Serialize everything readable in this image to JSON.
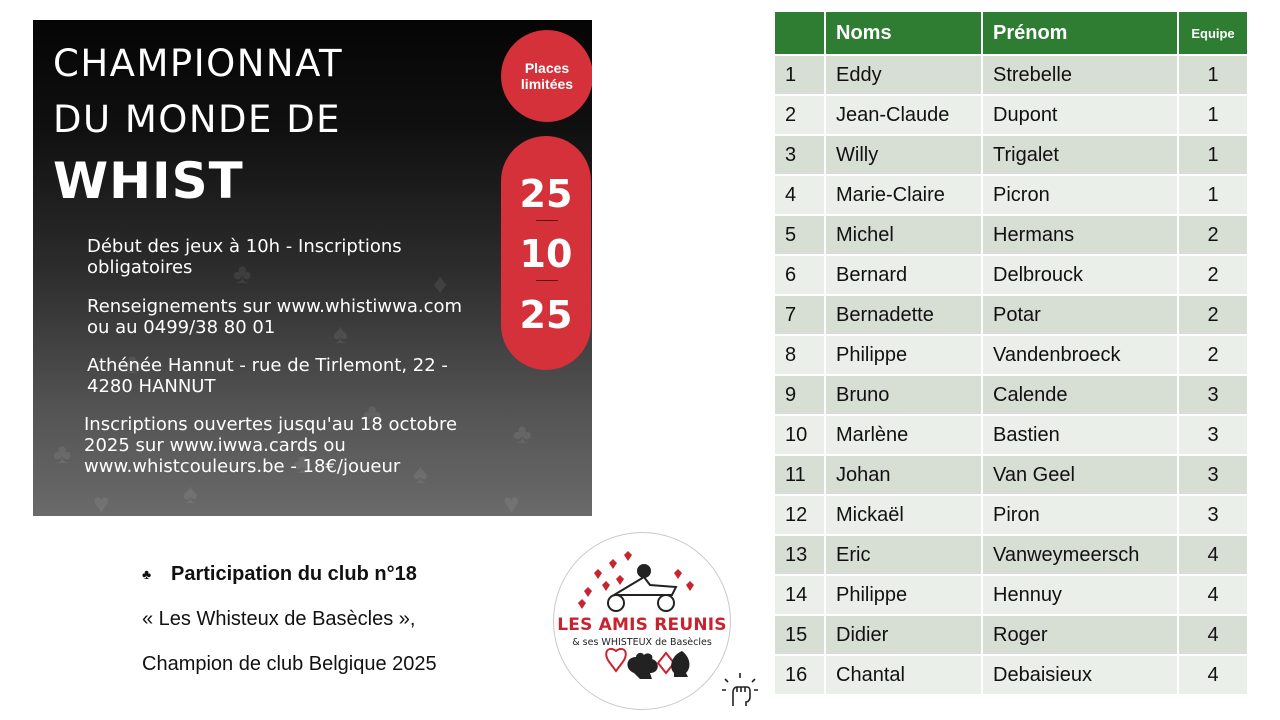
{
  "poster": {
    "title_line1": "CHAMPIONNAT",
    "title_line2": "DU MONDE DE",
    "title_line3": "WHIST",
    "badge": "Places limitées",
    "date_day": "25",
    "date_month": "10",
    "date_year": "25",
    "info_1": "Début des jeux à 10h - Inscriptions\nobligatoires",
    "info_2": "Renseignements sur www.whistiwwa.com\nou au 0499/38 80 01",
    "info_3": "Athénée Hannut - rue de Tirlemont, 22 -\n4280 HANNUT",
    "info_4": "Inscriptions ouvertes jusqu'au 18 octobre\n2025 sur www.iwwa.cards ou\nwww.whistcouleurs.be - 18€/joueur"
  },
  "club": {
    "bullet_icon": "club-suit-icon",
    "line1": "Participation du club n°18",
    "line2": "« Les Whisteux de Basècles »,",
    "line3": "Champion de club Belgique 2025"
  },
  "logo": {
    "name": "LES AMIS REUNIS",
    "subtitle": "& ses WHISTEUX de Basècles"
  },
  "table": {
    "headers": [
      "",
      "Noms",
      "Prénom",
      "Equipe"
    ],
    "rows": [
      {
        "n": "1",
        "nom": "Eddy",
        "prenom": "Strebelle",
        "equipe": "1"
      },
      {
        "n": "2",
        "nom": "Jean-Claude",
        "prenom": "Dupont",
        "equipe": "1"
      },
      {
        "n": "3",
        "nom": "Willy",
        "prenom": "Trigalet",
        "equipe": "1"
      },
      {
        "n": "4",
        "nom": "Marie-Claire",
        "prenom": "Picron",
        "equipe": "1"
      },
      {
        "n": "5",
        "nom": "Michel",
        "prenom": "Hermans",
        "equipe": "2"
      },
      {
        "n": "6",
        "nom": "Bernard",
        "prenom": "Delbrouck",
        "equipe": "2"
      },
      {
        "n": "7",
        "nom": "Bernadette",
        "prenom": "Potar",
        "equipe": "2"
      },
      {
        "n": "8",
        "nom": "Philippe",
        "prenom": "Vandenbroeck",
        "equipe": "2"
      },
      {
        "n": "9",
        "nom": "Bruno",
        "prenom": "Calende",
        "equipe": "3"
      },
      {
        "n": "10",
        "nom": "Marlène",
        "prenom": "Bastien",
        "equipe": "3"
      },
      {
        "n": "11",
        "nom": "Johan",
        "prenom": "Van Geel",
        "equipe": "3"
      },
      {
        "n": "12",
        "nom": "Mickaël",
        "prenom": "Piron",
        "equipe": "3"
      },
      {
        "n": "13",
        "nom": "Eric",
        "prenom": "Vanweymeersch",
        "equipe": "4"
      },
      {
        "n": "14",
        "nom": "Philippe",
        "prenom": "Hennuy",
        "equipe": "4"
      },
      {
        "n": "15",
        "nom": "Didier",
        "prenom": "Roger",
        "equipe": "4"
      },
      {
        "n": "16",
        "nom": "Chantal",
        "prenom": "Debaisieux",
        "equipe": "4"
      }
    ]
  },
  "colors": {
    "header_green": "#2e7d32",
    "row_dark": "#d7ded4",
    "row_light": "#ebefe9",
    "poster_red": "#d4313a"
  }
}
